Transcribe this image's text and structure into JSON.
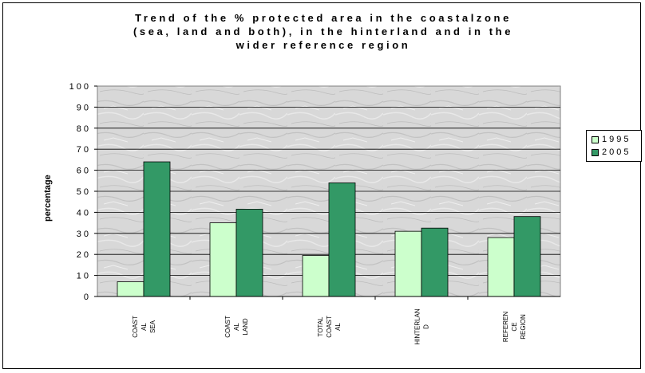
{
  "chart_data": {
    "type": "bar",
    "title": "Trend of the % protected area in the coastal zone (sea, land and both), in the hinterland and in the wider reference region",
    "title_lines": [
      "Trend of the %  protected area in the coastalzone",
      "(sea, land and both), in the hinterland and in the",
      "wider reference region"
    ],
    "ylabel": "percentage",
    "xlabel": "",
    "ylim": [
      0,
      100
    ],
    "yticks": [
      "100",
      "90",
      "80",
      "70",
      "60",
      "50",
      "40",
      "30",
      "20",
      "10",
      "0"
    ],
    "categories": [
      "COAST AL SEA",
      "COAST AL LAND",
      "TOTAL COAST AL",
      "HINTERLAN D",
      "REFEREN CE REGION"
    ],
    "category_lines": [
      [
        "COAST",
        "AL",
        "SEA"
      ],
      [
        "COAST",
        "AL",
        "LAND"
      ],
      [
        "TOTAL",
        "COAST",
        "AL"
      ],
      [
        "HINTERLAN",
        "D"
      ],
      [
        "REFEREN",
        "CE",
        "REGION"
      ]
    ],
    "series": [
      {
        "name": "1995",
        "color": "#ccffcc",
        "values": [
          7,
          35,
          19.5,
          31,
          28
        ]
      },
      {
        "name": "2005",
        "color": "#339966",
        "values": [
          64,
          41.5,
          54,
          32.5,
          38
        ]
      }
    ],
    "grid": true,
    "legend_position": "right"
  },
  "legend": {
    "items": [
      {
        "label": "1995",
        "color": "#ccffcc"
      },
      {
        "label": "2005",
        "color": "#339966"
      }
    ]
  }
}
